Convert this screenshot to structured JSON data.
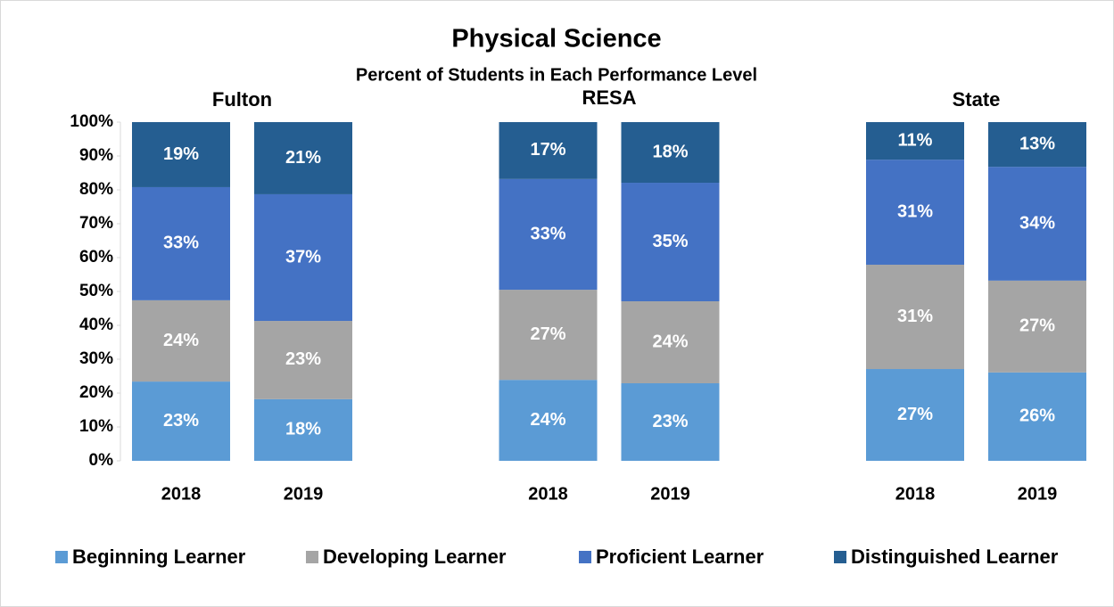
{
  "chart_data": {
    "type": "stacked_bar",
    "title": "Physical Science",
    "subtitle": "Percent of Students in Each Performance Level",
    "groups": [
      "Fulton",
      "RESA",
      "State"
    ],
    "categories": [
      "2018",
      "2019",
      "2018",
      "2019",
      "2018",
      "2019"
    ],
    "series": [
      {
        "name": "Beginning Learner",
        "color": "#5b9bd5",
        "values": [
          23.4,
          18.2,
          23.9,
          22.9,
          27.1,
          26.1
        ],
        "value_labels": [
          "23%",
          "18%",
          "24%",
          "23%",
          "27%",
          "26%"
        ]
      },
      {
        "name": "Developing Learner",
        "color": "#a5a5a5",
        "values": [
          24.0,
          23.1,
          26.6,
          24.2,
          30.8,
          27.1
        ],
        "value_labels": [
          "24%",
          "23%",
          "27%",
          "24%",
          "31%",
          "27%"
        ]
      },
      {
        "name": "Proficient Learner",
        "color": "#4472c4",
        "values": [
          33.4,
          37.4,
          32.7,
          35.0,
          31.0,
          33.6
        ],
        "value_labels": [
          "33%",
          "37%",
          "33%",
          "35%",
          "31%",
          "34%"
        ]
      },
      {
        "name": "Distinguished Learner",
        "color": "#255e91",
        "values": [
          19.2,
          21.3,
          16.8,
          17.9,
          11.1,
          13.2
        ],
        "value_labels": [
          "19%",
          "21%",
          "17%",
          "18%",
          "11%",
          "13%"
        ]
      }
    ],
    "ylim": [
      0,
      100
    ],
    "yticks": [
      {
        "value": 0,
        "label": "0%"
      },
      {
        "value": 10,
        "label": "10%"
      },
      {
        "value": 20,
        "label": "20%"
      },
      {
        "value": 30,
        "label": "30%"
      },
      {
        "value": 40,
        "label": "40%"
      },
      {
        "value": 50,
        "label": "50%"
      },
      {
        "value": 60,
        "label": "60%"
      },
      {
        "value": 70,
        "label": "70%"
      },
      {
        "value": 80,
        "label": "80%"
      },
      {
        "value": 90,
        "label": "90%"
      },
      {
        "value": 100,
        "label": "100%"
      }
    ],
    "legend": "bottom"
  }
}
